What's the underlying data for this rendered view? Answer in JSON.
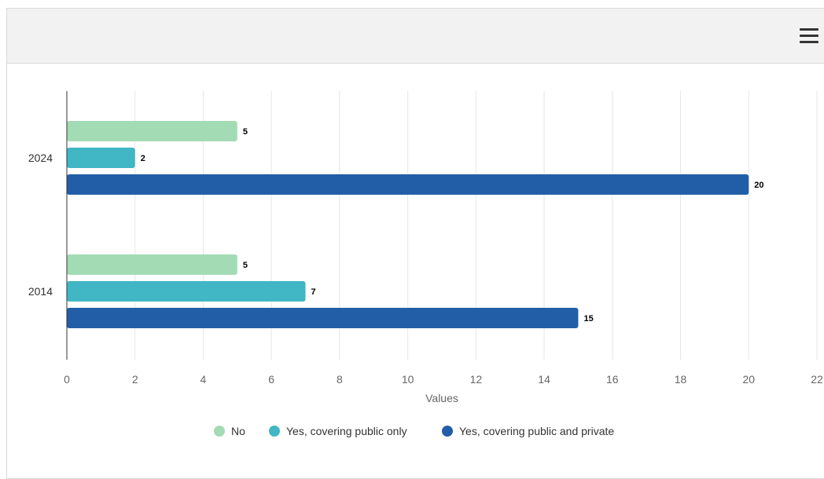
{
  "header": {
    "menu_icon": "hamburger-menu-icon"
  },
  "colors": {
    "No": "#a3dbb5",
    "Yes, covering public only": "#41b6c4",
    "Yes, covering public and private": "#225ea8",
    "axis": "#333333",
    "grid": "#e6e6e6",
    "tick_text": "#666666",
    "label_text": "#000000"
  },
  "chart_data": {
    "type": "bar",
    "orientation": "horizontal",
    "categories": [
      "2024",
      "2014"
    ],
    "series": [
      {
        "name": "No",
        "values": [
          5,
          5
        ]
      },
      {
        "name": "Yes, covering public only",
        "values": [
          2,
          7
        ]
      },
      {
        "name": "Yes, covering public and private",
        "values": [
          20,
          15
        ]
      }
    ],
    "xlabel": "Values",
    "ylabel": "",
    "xlim": [
      0,
      22
    ],
    "xticks": [
      0,
      2,
      4,
      6,
      8,
      10,
      12,
      14,
      16,
      18,
      20,
      22
    ],
    "grid": true,
    "data_labels": true,
    "legend": {
      "position": "bottom-center",
      "marker": "circle"
    }
  }
}
